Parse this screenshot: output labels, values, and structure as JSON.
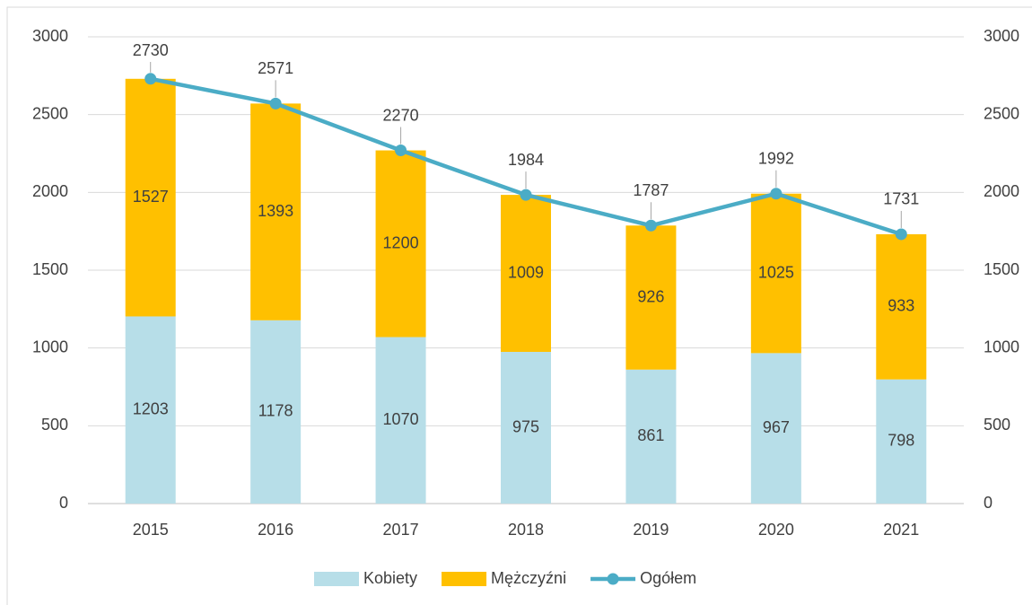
{
  "chart_data": {
    "type": "bar",
    "stacked": true,
    "categories": [
      "2015",
      "2016",
      "2017",
      "2018",
      "2019",
      "2020",
      "2021"
    ],
    "series": [
      {
        "name": "Kobiety",
        "color": "#b7dee8",
        "values": [
          1203,
          1178,
          1070,
          975,
          861,
          967,
          798
        ]
      },
      {
        "name": "Mężczyźni",
        "color": "#ffc000",
        "values": [
          1527,
          1393,
          1200,
          1009,
          926,
          1025,
          933
        ]
      },
      {
        "name": "Ogółem",
        "type": "line",
        "axis": "y2",
        "color": "#4bacc6",
        "values": [
          2730,
          2571,
          2270,
          1984,
          1787,
          1992,
          1731
        ]
      }
    ],
    "ylim": [
      0,
      3000
    ],
    "yticks": [
      0,
      500,
      1000,
      1500,
      2000,
      2500,
      3000
    ],
    "y2lim": [
      0,
      3000
    ],
    "y2ticks": [
      0,
      500,
      1000,
      1500,
      2000,
      2500,
      3000
    ],
    "grid": true,
    "legend": "bottom"
  }
}
